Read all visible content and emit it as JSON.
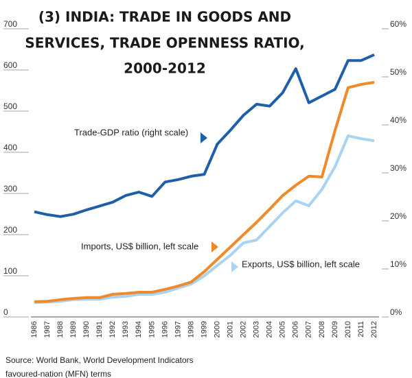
{
  "chart_data": {
    "type": "line",
    "title": [
      "(3) INDIA: TRADE IN GOODS AND",
      "SERVICES, TRADE OPENNESS RATIO,",
      "2000-2012"
    ],
    "categories": [
      "1986",
      "1987",
      "1988",
      "1989",
      "1990",
      "1991",
      "1992",
      "1993",
      "1994",
      "1995",
      "1996",
      "1997",
      "1998",
      "1999",
      "2000",
      "2001",
      "2002",
      "2003",
      "2004",
      "2005",
      "2006",
      "2007",
      "2008",
      "2009",
      "2010",
      "2011",
      "2012"
    ],
    "series": [
      {
        "name": "Trade-GDP ratio (right scale)",
        "color": "#1f5ea8",
        "axis": "y2",
        "values": [
          21.9,
          21.3,
          20.9,
          21.4,
          22.3,
          23.1,
          23.9,
          25.3,
          26.0,
          25.1,
          28.1,
          28.6,
          29.3,
          29.7,
          36.0,
          38.9,
          42.0,
          44.3,
          43.9,
          46.7,
          51.7,
          44.6,
          46.0,
          47.4,
          53.4,
          53.4,
          54.6
        ]
      },
      {
        "name": "Imports, US$ billion, left scale",
        "color": "#f0892a",
        "values": [
          37,
          38,
          42,
          45,
          47,
          47,
          55,
          57,
          60,
          60,
          67,
          75,
          85,
          110,
          140,
          170,
          200,
          230,
          262,
          295,
          320,
          342,
          340,
          453,
          557,
          565,
          570
        ]
      },
      {
        "name": "Exports, US$ billion, left scale",
        "color": "#a8d3f2",
        "values": [
          35,
          36,
          38,
          42,
          43,
          43,
          48,
          50,
          55,
          55,
          60,
          70,
          80,
          100,
          125,
          150,
          180,
          187,
          220,
          253,
          282,
          270,
          310,
          365,
          440,
          433,
          428
        ]
      }
    ],
    "ylim": [
      0,
      700
    ],
    "yticks": [
      0,
      100,
      200,
      300,
      400,
      500,
      600,
      700
    ],
    "y2lim": [
      0,
      60
    ],
    "y2ticks": [
      {
        "value": 0,
        "label": "0%"
      },
      {
        "value": 10,
        "label": "10%"
      },
      {
        "value": 20,
        "label": "20%"
      },
      {
        "value": 30,
        "label": "30%"
      },
      {
        "value": 40,
        "label": "40%"
      },
      {
        "value": 50,
        "label": "50%"
      },
      {
        "value": 60,
        "label": "60%"
      }
    ],
    "source": "Source: World Bank, World Development Indicators",
    "footer_fragment": "favoured-nation (MFN) terms"
  }
}
